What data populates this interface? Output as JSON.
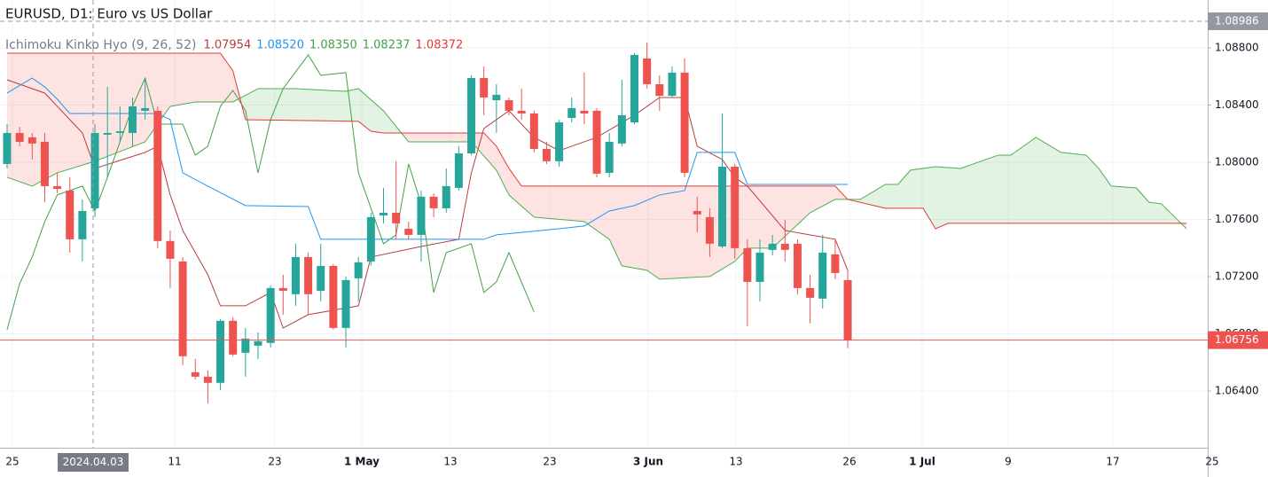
{
  "chart_data": {
    "type": "candlestick",
    "title": "EURUSD, D1: Euro vs US Dollar",
    "indicator": {
      "title": "Ichimoku Kinko Hyo (9, 26, 52)",
      "values": [
        {
          "value": 1.07954,
          "label": "1.07954"
        },
        {
          "value": 1.0852,
          "label": "1.08520"
        },
        {
          "value": 1.0835,
          "label": "1.08350"
        },
        {
          "value": 1.08237,
          "label": "1.08237"
        },
        {
          "value": 1.08372,
          "label": "1.08372"
        }
      ],
      "colors": [
        "#b2403c",
        "#2196f3",
        "#43a047",
        "#43a047",
        "#e53935"
      ]
    },
    "up_color": "#26a69a",
    "down_color": "#ef5350",
    "open": [
      1.07988,
      1.08205,
      1.08174,
      1.08143,
      1.07833,
      1.07802,
      1.07461,
      1.07678,
      1.08193,
      1.08205,
      1.08205,
      1.0836,
      1.0836,
      1.07449,
      1.07306,
      1.06531,
      1.065,
      1.06457,
      1.06891,
      1.06667,
      1.06717,
      1.06736,
      1.0712,
      1.07077,
      1.07337,
      1.07101,
      1.07275,
      1.06841,
      1.07188,
      1.07306,
      1.07628,
      1.07647,
      1.07535,
      1.07492,
      1.07759,
      1.07678,
      1.07821,
      1.08062,
      1.08589,
      1.08434,
      1.08434,
      1.0836,
      1.08341,
      1.08093,
      1.08007,
      1.0831,
      1.0836,
      1.0836,
      1.07926,
      1.08131,
      1.08279,
      1.08726,
      1.08546,
      1.08465,
      1.08627,
      1.07659,
      1.07616,
      1.07411,
      1.07969,
      1.07399,
      1.07163,
      1.07387,
      1.0743,
      1.0743,
      1.0712,
      1.07046,
      1.07356,
      1.07176
    ],
    "high": [
      1.08267,
      1.08248,
      1.08205,
      1.08205,
      1.07926,
      1.07895,
      1.0774,
      1.08267,
      1.08527,
      1.08391,
      1.08453,
      1.08589,
      1.08391,
      1.07523,
      1.07337,
      1.06624,
      1.06543,
      1.06903,
      1.06915,
      1.06841,
      1.0681,
      1.07139,
      1.07213,
      1.0743,
      1.07368,
      1.0743,
      1.07287,
      1.07201,
      1.07337,
      1.07647,
      1.07821,
      1.08007,
      1.07585,
      1.07802,
      1.07783,
      1.07957,
      1.08112,
      1.08608,
      1.0867,
      1.08546,
      1.08453,
      1.08515,
      1.0836,
      1.08143,
      1.08298,
      1.08453,
      1.08627,
      1.08379,
      1.08205,
      1.08577,
      1.08763,
      1.08837,
      1.08608,
      1.0867,
      1.08726,
      1.07759,
      1.07678,
      1.08341,
      1.07988,
      1.07461,
      1.07461,
      1.07492,
      1.07597,
      1.07461,
      1.07213,
      1.07492,
      1.07461,
      1.07244
    ],
    "low": [
      1.07957,
      1.08112,
      1.08019,
      1.07721,
      1.07783,
      1.07368,
      1.07306,
      1.07616,
      1.07895,
      1.08143,
      1.08112,
      1.08298,
      1.07399,
      1.0712,
      1.06581,
      1.06481,
      1.06314,
      1.06407,
      1.06643,
      1.065,
      1.06624,
      1.06705,
      1.06934,
      1.06996,
      1.06934,
      1.07027,
      1.06829,
      1.06705,
      1.07027,
      1.07275,
      1.07573,
      1.07461,
      1.07461,
      1.07306,
      1.07616,
      1.07647,
      1.07802,
      1.0805,
      1.08329,
      1.08205,
      1.08329,
      1.08298,
      1.08069,
      1.07988,
      1.07969,
      1.08279,
      1.08267,
      1.07895,
      1.07895,
      1.08112,
      1.08267,
      1.08515,
      1.0836,
      1.08453,
      1.07895,
      1.07511,
      1.07337,
      1.07399,
      1.07325,
      1.06853,
      1.07027,
      1.07349,
      1.07306,
      1.07077,
      1.06872,
      1.06977,
      1.07182,
      1.067
    ],
    "close": [
      1.08205,
      1.08143,
      1.08131,
      1.07833,
      1.07814,
      1.07461,
      1.07659,
      1.08205,
      1.08205,
      1.08217,
      1.08391,
      1.08379,
      1.07449,
      1.07325,
      1.06643,
      1.065,
      1.06457,
      1.06891,
      1.06655,
      1.06767,
      1.06748,
      1.0712,
      1.07101,
      1.07337,
      1.07077,
      1.07275,
      1.06841,
      1.07176,
      1.073,
      1.07616,
      1.07647,
      1.07573,
      1.07492,
      1.07759,
      1.07678,
      1.07833,
      1.08062,
      1.08589,
      1.08453,
      1.08472,
      1.0836,
      1.08341,
      1.08093,
      1.08007,
      1.08279,
      1.08379,
      1.08341,
      1.0792,
      1.08143,
      1.08329,
      1.08751,
      1.08546,
      1.08465,
      1.08627,
      1.07926,
      1.07635,
      1.0743,
      1.07969,
      1.07399,
      1.07163,
      1.07368,
      1.0743,
      1.07387,
      1.0712,
      1.07052,
      1.07368,
      1.07225,
      1.06756
    ],
    "overlays": [
      {
        "color": "#b2403c",
        "x": [
          0,
          3,
          4,
          6,
          7,
          11,
          12,
          13,
          14,
          15,
          16,
          17,
          19,
          21,
          22,
          24,
          28,
          29,
          33,
          36,
          37,
          38,
          40,
          42,
          44,
          47,
          50,
          52,
          54,
          55,
          57,
          58,
          59,
          62,
          66,
          67
        ],
        "values": [
          1.08577,
          1.08484,
          1.08391,
          1.08205,
          1.07957,
          1.08069,
          1.08112,
          1.07771,
          1.07523,
          1.07368,
          1.07213,
          1.06996,
          1.06996,
          1.07089,
          1.06841,
          1.06934,
          1.06996,
          1.07337,
          1.07411,
          1.07461,
          1.07926,
          1.08236,
          1.0836,
          1.08174,
          1.08081,
          1.08174,
          1.08329,
          1.08453,
          1.08453,
          1.08112,
          1.08019,
          1.07895,
          1.07833,
          1.07523,
          1.07461,
          1.07244
        ]
      },
      {
        "color": "#2196f3",
        "x": [
          0,
          2,
          3,
          4,
          5,
          12,
          13,
          14,
          16,
          19,
          24,
          25,
          38,
          39,
          44,
          46,
          48,
          50,
          52,
          54,
          55,
          58,
          59,
          67
        ],
        "values": [
          1.08484,
          1.08589,
          1.08527,
          1.08441,
          1.08341,
          1.08341,
          1.08298,
          1.07926,
          1.07833,
          1.07697,
          1.0769,
          1.07461,
          1.07461,
          1.07492,
          1.07535,
          1.07554,
          1.07659,
          1.07697,
          1.07771,
          1.07802,
          1.08069,
          1.08069,
          1.07845,
          1.07845
        ]
      },
      {
        "color": "#43a047",
        "x": [
          0,
          1,
          2,
          3,
          4,
          6,
          7,
          8,
          10,
          11,
          12,
          14,
          15,
          16,
          17,
          18,
          19,
          20,
          21,
          22,
          24,
          25,
          27,
          28,
          30,
          31,
          32,
          33,
          34,
          35,
          37,
          38,
          39,
          40,
          42
        ],
        "values": [
          1.06829,
          1.07151,
          1.07337,
          1.07585,
          1.07771,
          1.07833,
          1.07659,
          1.07895,
          1.08391,
          1.08589,
          1.08267,
          1.08267,
          1.0805,
          1.08112,
          1.08391,
          1.08503,
          1.0836,
          1.07926,
          1.08298,
          1.08515,
          1.08751,
          1.08608,
          1.08627,
          1.07926,
          1.0743,
          1.07492,
          1.07988,
          1.07709,
          1.07089,
          1.07368,
          1.0743,
          1.07089,
          1.07163,
          1.07368,
          1.06953
        ]
      },
      {
        "color": "#4caf50",
        "x": [
          0,
          2,
          4,
          7,
          11,
          13,
          15,
          18,
          20,
          23,
          27,
          28,
          30,
          32,
          37,
          39,
          40,
          42,
          46,
          48,
          49,
          51,
          52,
          56,
          58,
          59,
          61,
          64,
          66,
          68,
          70,
          71,
          72,
          74,
          76,
          79,
          80,
          82,
          84,
          86,
          87,
          88,
          90,
          91,
          92,
          94
        ],
        "values": [
          1.07895,
          1.07833,
          1.07926,
          1.08007,
          1.08143,
          1.08391,
          1.08422,
          1.08422,
          1.08515,
          1.08515,
          1.08496,
          1.08515,
          1.0836,
          1.08143,
          1.08143,
          1.07945,
          1.07771,
          1.07616,
          1.07585,
          1.07461,
          1.07275,
          1.07244,
          1.07182,
          1.07201,
          1.07306,
          1.07399,
          1.07399,
          1.07647,
          1.0774,
          1.0774,
          1.07845,
          1.07845,
          1.07945,
          1.07969,
          1.07957,
          1.0805,
          1.0805,
          1.08174,
          1.08069,
          1.0805,
          1.07957,
          1.07833,
          1.07821,
          1.07721,
          1.07709,
          1.07535
        ]
      },
      {
        "color": "#e53935",
        "x": [
          0,
          17,
          18,
          19,
          28,
          29,
          30,
          38,
          39,
          40,
          41,
          66,
          67,
          70,
          73,
          74,
          75,
          94
        ],
        "values": [
          1.08763,
          1.08763,
          1.08639,
          1.08298,
          1.08286,
          1.08217,
          1.08205,
          1.08205,
          1.08112,
          1.07957,
          1.07833,
          1.07833,
          1.0774,
          1.07678,
          1.07678,
          1.07535,
          1.07573,
          1.07573
        ]
      }
    ],
    "cloud_colors": [
      "rgba(76,175,80,0.16)",
      "rgba(244,67,54,0.14)"
    ],
    "ylim": [
      1.06003,
      1.09135
    ],
    "yticks": [
      {
        "value": 1.064,
        "label": "1.06400"
      },
      {
        "value": 1.068,
        "label": "1.06800"
      },
      {
        "value": 1.072,
        "label": "1.07200"
      },
      {
        "value": 1.076,
        "label": "1.07600"
      },
      {
        "value": 1.08,
        "label": "1.08000"
      },
      {
        "value": 1.084,
        "label": "1.08400"
      },
      {
        "value": 1.088,
        "label": "1.08800"
      }
    ],
    "xticks": [
      "25",
      "11",
      "23",
      "1 May",
      "13",
      "23",
      "3 Jun",
      "13",
      "26",
      "1 Jul",
      "9",
      "17",
      "25"
    ],
    "last_price": 1.06756,
    "crosshair": {
      "date": "2024.04.03",
      "price": 1.08986
    },
    "grid": true
  }
}
